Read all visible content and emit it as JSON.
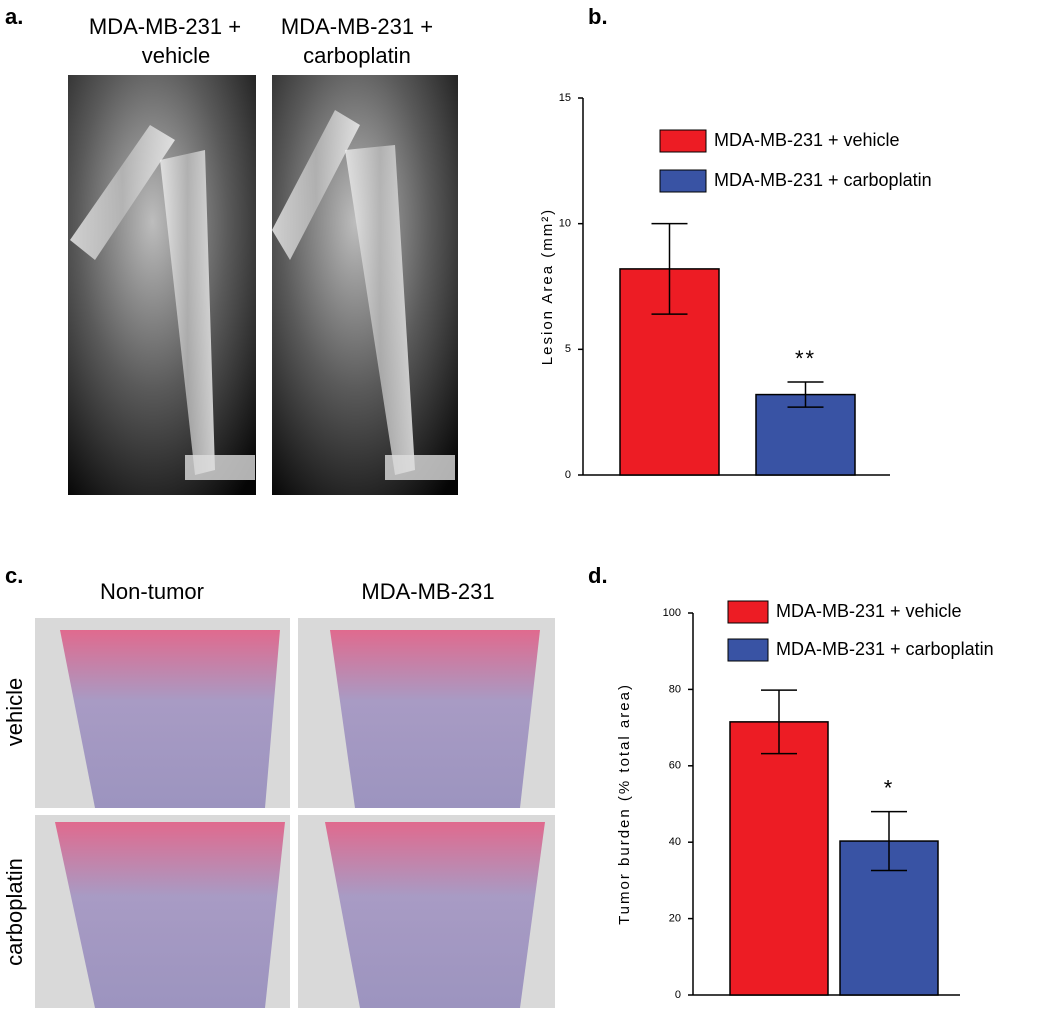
{
  "panel_a": {
    "label": "a.",
    "image_labels": [
      [
        "MDA-MB-231 +",
        "vehicle"
      ],
      [
        "MDA-MB-231 +",
        "carboplatin"
      ]
    ]
  },
  "panel_c": {
    "label": "c.",
    "column_labels": [
      "Non-tumor",
      "MDA-MB-231"
    ],
    "row_labels": [
      "vehicle",
      "carboplatin"
    ]
  },
  "chart_data": [
    {
      "type": "bar",
      "label": "b.",
      "ylabel": "Lesion Area (mm²)",
      "ylim": [
        0,
        15
      ],
      "yticks": [
        0,
        5,
        10,
        15
      ],
      "legend": "upper right",
      "series": [
        {
          "name": "MDA-MB-231 + vehicle",
          "color": "#ed1c24",
          "values": [
            8.2
          ],
          "errors": [
            1.8
          ]
        },
        {
          "name": "MDA-MB-231 + carboplatin",
          "color": "#3953a4",
          "values": [
            3.2
          ],
          "errors": [
            0.5
          ],
          "annotation": "**"
        }
      ]
    },
    {
      "type": "bar",
      "label": "d.",
      "ylabel": "Tumor burden (% total area)",
      "ylim": [
        0,
        100
      ],
      "yticks": [
        0,
        20,
        40,
        60,
        80,
        100
      ],
      "legend": "upper right",
      "series": [
        {
          "name": "MDA-MB-231 + vehicle",
          "color": "#ed1c24",
          "values": [
            71.5
          ],
          "errors": [
            8.3
          ]
        },
        {
          "name": "MDA-MB-231 + carboplatin",
          "color": "#3953a4",
          "values": [
            40.3
          ],
          "errors": [
            7.7
          ],
          "annotation": "*"
        }
      ]
    }
  ]
}
